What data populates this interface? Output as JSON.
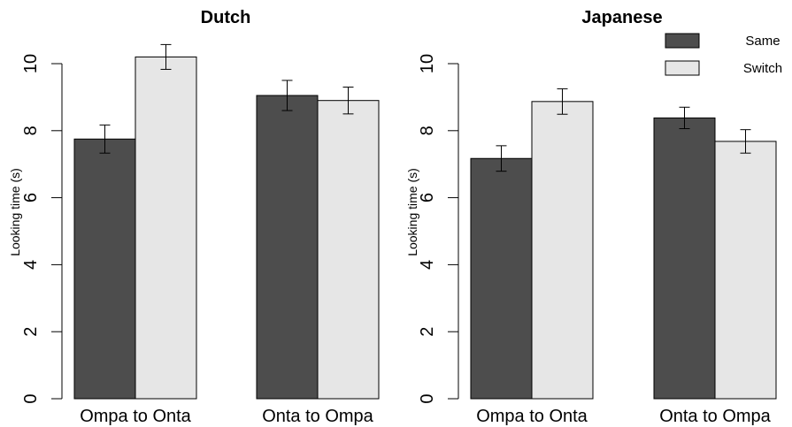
{
  "chart_data": [
    {
      "type": "bar",
      "title": "Dutch",
      "ylabel": "Looking time (s)",
      "ylim": [
        0,
        10
      ],
      "yticks": [
        0,
        2,
        4,
        6,
        8,
        10
      ],
      "categories": [
        "Ompa to Onta",
        "Onta to Ompa"
      ],
      "series": [
        {
          "name": "Same",
          "color": "#4d4d4d",
          "values": [
            7.75,
            9.05
          ],
          "err": [
            0.42,
            0.45
          ]
        },
        {
          "name": "Switch",
          "color": "#e6e6e6",
          "values": [
            10.2,
            8.9
          ],
          "err": [
            0.37,
            0.4
          ]
        }
      ],
      "grid": false
    },
    {
      "type": "bar",
      "title": "Japanese",
      "ylabel": "Looking time (s)",
      "ylim": [
        0,
        10
      ],
      "yticks": [
        0,
        2,
        4,
        6,
        8,
        10
      ],
      "categories": [
        "Ompa to Onta",
        "Onta to Ompa"
      ],
      "series": [
        {
          "name": "Same",
          "color": "#4d4d4d",
          "values": [
            7.17,
            8.38
          ],
          "err": [
            0.38,
            0.32
          ]
        },
        {
          "name": "Switch",
          "color": "#e6e6e6",
          "values": [
            8.87,
            7.68
          ],
          "err": [
            0.38,
            0.35
          ]
        }
      ],
      "grid": false,
      "legend": "top-right"
    }
  ]
}
